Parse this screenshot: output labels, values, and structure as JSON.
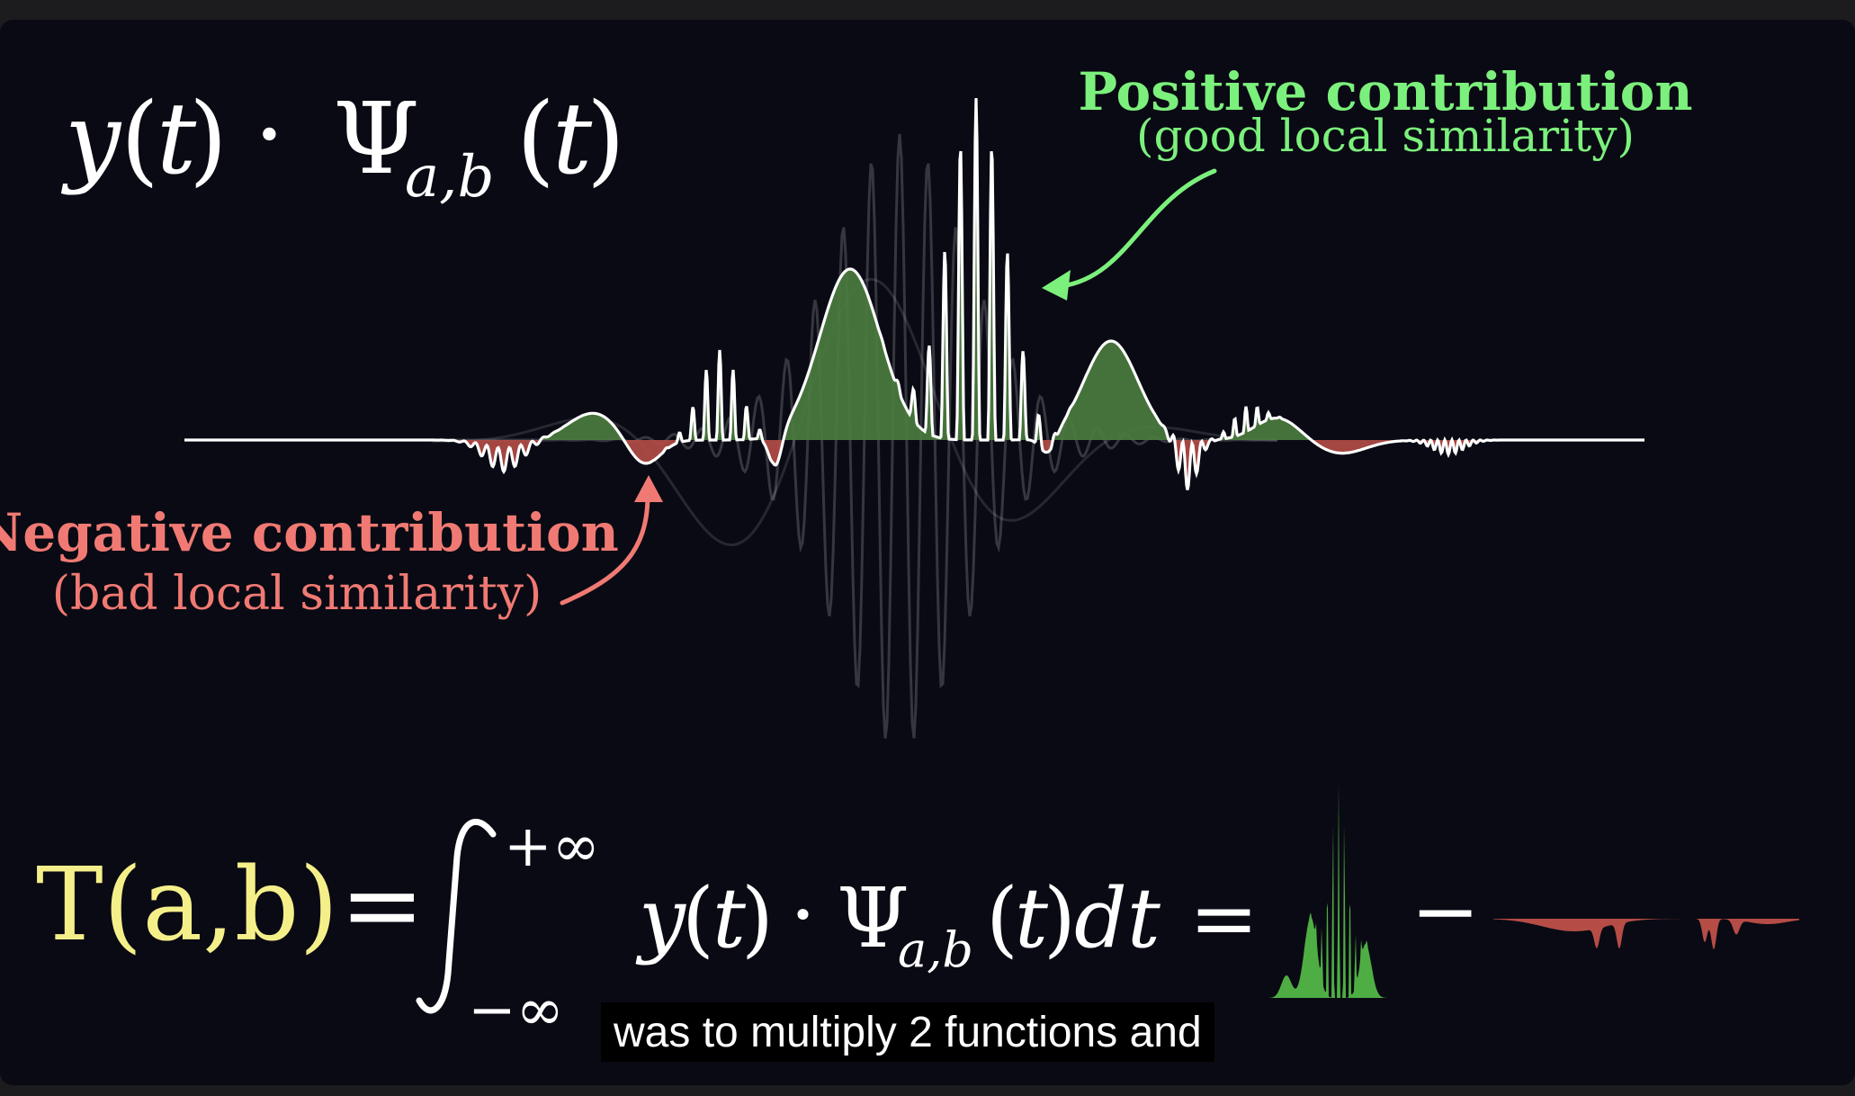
{
  "formula_top": {
    "y": "y",
    "t": "t",
    "dot": "·",
    "psi": "Ψ",
    "sub_ab": "a,b"
  },
  "annotations": {
    "positive_title": "Positive contribution",
    "positive_sub": "(good local similarity)",
    "negative_title": "Negative contribution",
    "negative_sub": "(bad local similarity)"
  },
  "integral_formula": {
    "lhs": "T(a,b)",
    "equals": "=",
    "upper_limit": "+∞",
    "lower_limit": "−∞",
    "integrand_y": "y",
    "integrand_t": "t",
    "dot": "·",
    "psi": "Ψ",
    "sub_ab": "a,b",
    "dt": "dt",
    "equals2": "=",
    "minus": "−"
  },
  "subtitle": "was to multiply 2 functions and",
  "colors": {
    "background": "#0a0a14",
    "positive": "#7cf07c",
    "positive_fill": "#4b7d3e",
    "negative": "#f07a73",
    "negative_fill": "#b54d46",
    "formula_yellow": "#f5ef8a",
    "curve": "#ffffff"
  }
}
